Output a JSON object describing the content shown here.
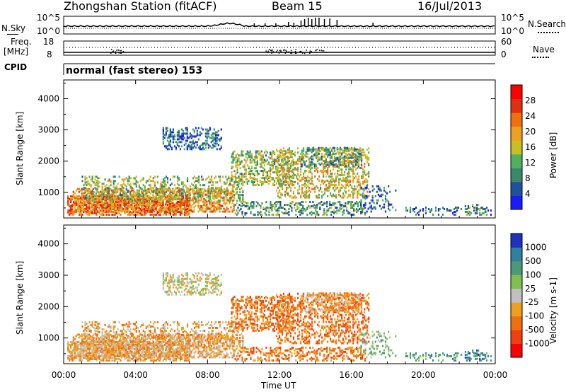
{
  "header": {
    "station": "Zhongshan Station (fitACF)",
    "beam": "Beam 15",
    "date": "16/Jul/2013"
  },
  "top_panels": {
    "nsky_label": "N.Sky",
    "nsky_ticks": [
      "10^5",
      "10^0"
    ],
    "nsearch_label": "N.Search",
    "nsearch_ticks": [
      "10^5",
      "10^0"
    ],
    "freq_label_1": "Freq.",
    "freq_label_2": "[MHz]",
    "freq_ticks": [
      "18",
      "8"
    ],
    "nave_label": "Nave",
    "nave_ticks": [
      "60",
      "0"
    ],
    "cpid_label": "CPID",
    "cpid_text": "normal (fast stereo) 153"
  },
  "colors": {
    "power_scale": [
      "#1a1aff",
      "#2050a0",
      "#3a8a6a",
      "#4fb060",
      "#c8c020",
      "#f0a020",
      "#f07010",
      "#e03010",
      "#ff0000"
    ],
    "velocity_scale": [
      "#ff0000",
      "#f04010",
      "#f07010",
      "#f0a020",
      "#c0c0c0",
      "#80c050",
      "#4a9a7a",
      "#3080a0",
      "#2030c0"
    ]
  },
  "chart_data": [
    {
      "type": "heatmap",
      "title": "",
      "ylabel": "Slant Range [km]",
      "xlabel": "",
      "x_ticks": [
        "00:00",
        "04:00",
        "08:00",
        "12:00",
        "16:00",
        "20:00",
        "00:00"
      ],
      "y_ticks": [
        "1000",
        "2000",
        "3000",
        "4000"
      ],
      "ylim": [
        180,
        4600
      ],
      "colorbar_label": "Power [dB]",
      "colorbar_ticks": [
        "4",
        "8",
        "12",
        "16",
        "20",
        "24",
        "28"
      ],
      "colorbar_range": [
        0,
        32
      ]
    },
    {
      "type": "heatmap",
      "title": "",
      "ylabel": "Slant Range [km]",
      "xlabel": "Time UT",
      "x_ticks": [
        "00:00",
        "04:00",
        "08:00",
        "12:00",
        "16:00",
        "20:00",
        "00:00"
      ],
      "y_ticks": [
        "1000",
        "2000",
        "3000",
        "4000"
      ],
      "ylim": [
        180,
        4600
      ],
      "colorbar_label": "Velocity [m s-1]",
      "colorbar_ticks": [
        "-1000",
        "-500",
        "-100",
        "-25",
        "25",
        "100",
        "500",
        "1000"
      ],
      "colorbar_range": [
        -1200,
        1200
      ]
    }
  ]
}
